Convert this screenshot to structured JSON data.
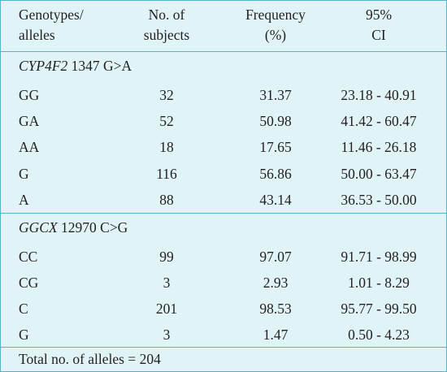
{
  "table": {
    "header": {
      "col1": [
        "Genotypes/",
        "alleles"
      ],
      "col2": [
        "No. of",
        "subjects"
      ],
      "col3": [
        "Frequency",
        "(%)"
      ],
      "col4": [
        "95%",
        "CI"
      ]
    },
    "sections": [
      {
        "gene": "CYP4F2",
        "variant": " 1347 G>A",
        "rows": [
          {
            "label": "GG",
            "n": "32",
            "freq": "31.37",
            "ci": "23.18 - 40.91"
          },
          {
            "label": "GA",
            "n": "52",
            "freq": "50.98",
            "ci": "41.42 - 60.47"
          },
          {
            "label": "AA",
            "n": "18",
            "freq": "17.65",
            "ci": "11.46 - 26.18"
          },
          {
            "label": "G",
            "n": "116",
            "freq": "56.86",
            "ci": "50.00 - 63.47"
          },
          {
            "label": "A",
            "n": "88",
            "freq": "43.14",
            "ci": "36.53 - 50.00"
          }
        ]
      },
      {
        "gene": "GGCX",
        "variant": " 12970 C>G",
        "rows": [
          {
            "label": "CC",
            "n": "99",
            "freq": "97.07",
            "ci": "91.71 - 98.99"
          },
          {
            "label": "CG",
            "n": "3",
            "freq": "2.93",
            "ci": "1.01 - 8.29"
          },
          {
            "label": "C",
            "n": "201",
            "freq": "98.53",
            "ci": "95.77 - 99.50"
          },
          {
            "label": "G",
            "n": "3",
            "freq": "1.47",
            "ci": "0.50 - 4.23"
          }
        ]
      }
    ],
    "footer": "Total no. of alleles = 204"
  },
  "colors": {
    "background": "#e0f3f7",
    "rule": "#56b3cb",
    "text": "#231f20"
  }
}
